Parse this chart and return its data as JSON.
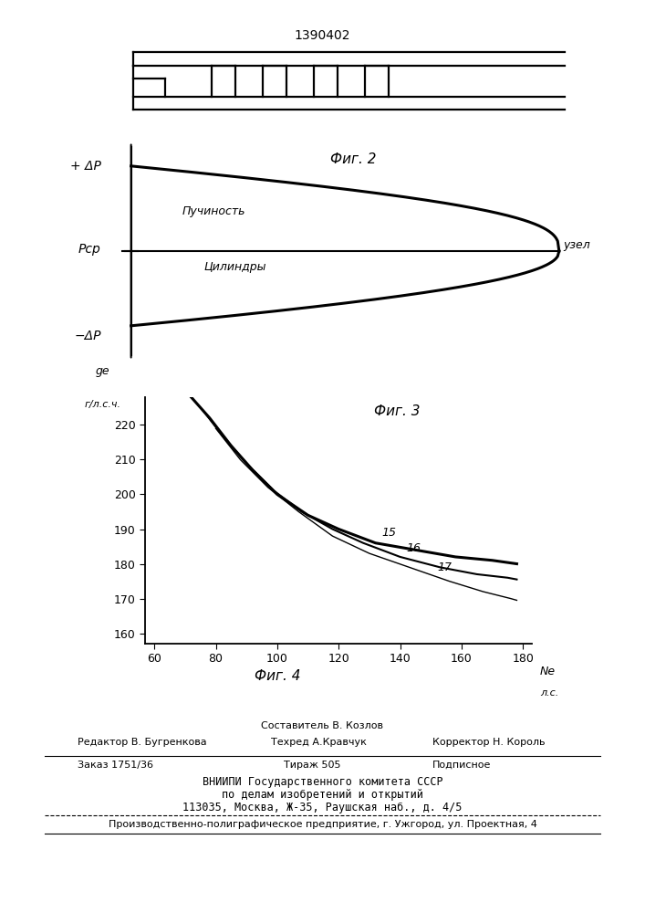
{
  "patent_number": "1390402",
  "fig2_label": "Фиг. 2",
  "fig3_label": "Фиг. 3",
  "fig4_label": "Фиг. 4",
  "ylabel_fig2_top": "+ ΔP",
  "ylabel_fig2_bottom": "−ΔP",
  "ylabel_psr": "Pср",
  "label_uzel": "узел",
  "label_puinos": "Пучиность",
  "label_cylinders": "Цилиндры",
  "ge_yticks": [
    160,
    170,
    180,
    190,
    200,
    210,
    220
  ],
  "ne_xticks": [
    60,
    80,
    100,
    120,
    140,
    160,
    180
  ],
  "bg_color": "#ffffff",
  "line_color": "#000000"
}
